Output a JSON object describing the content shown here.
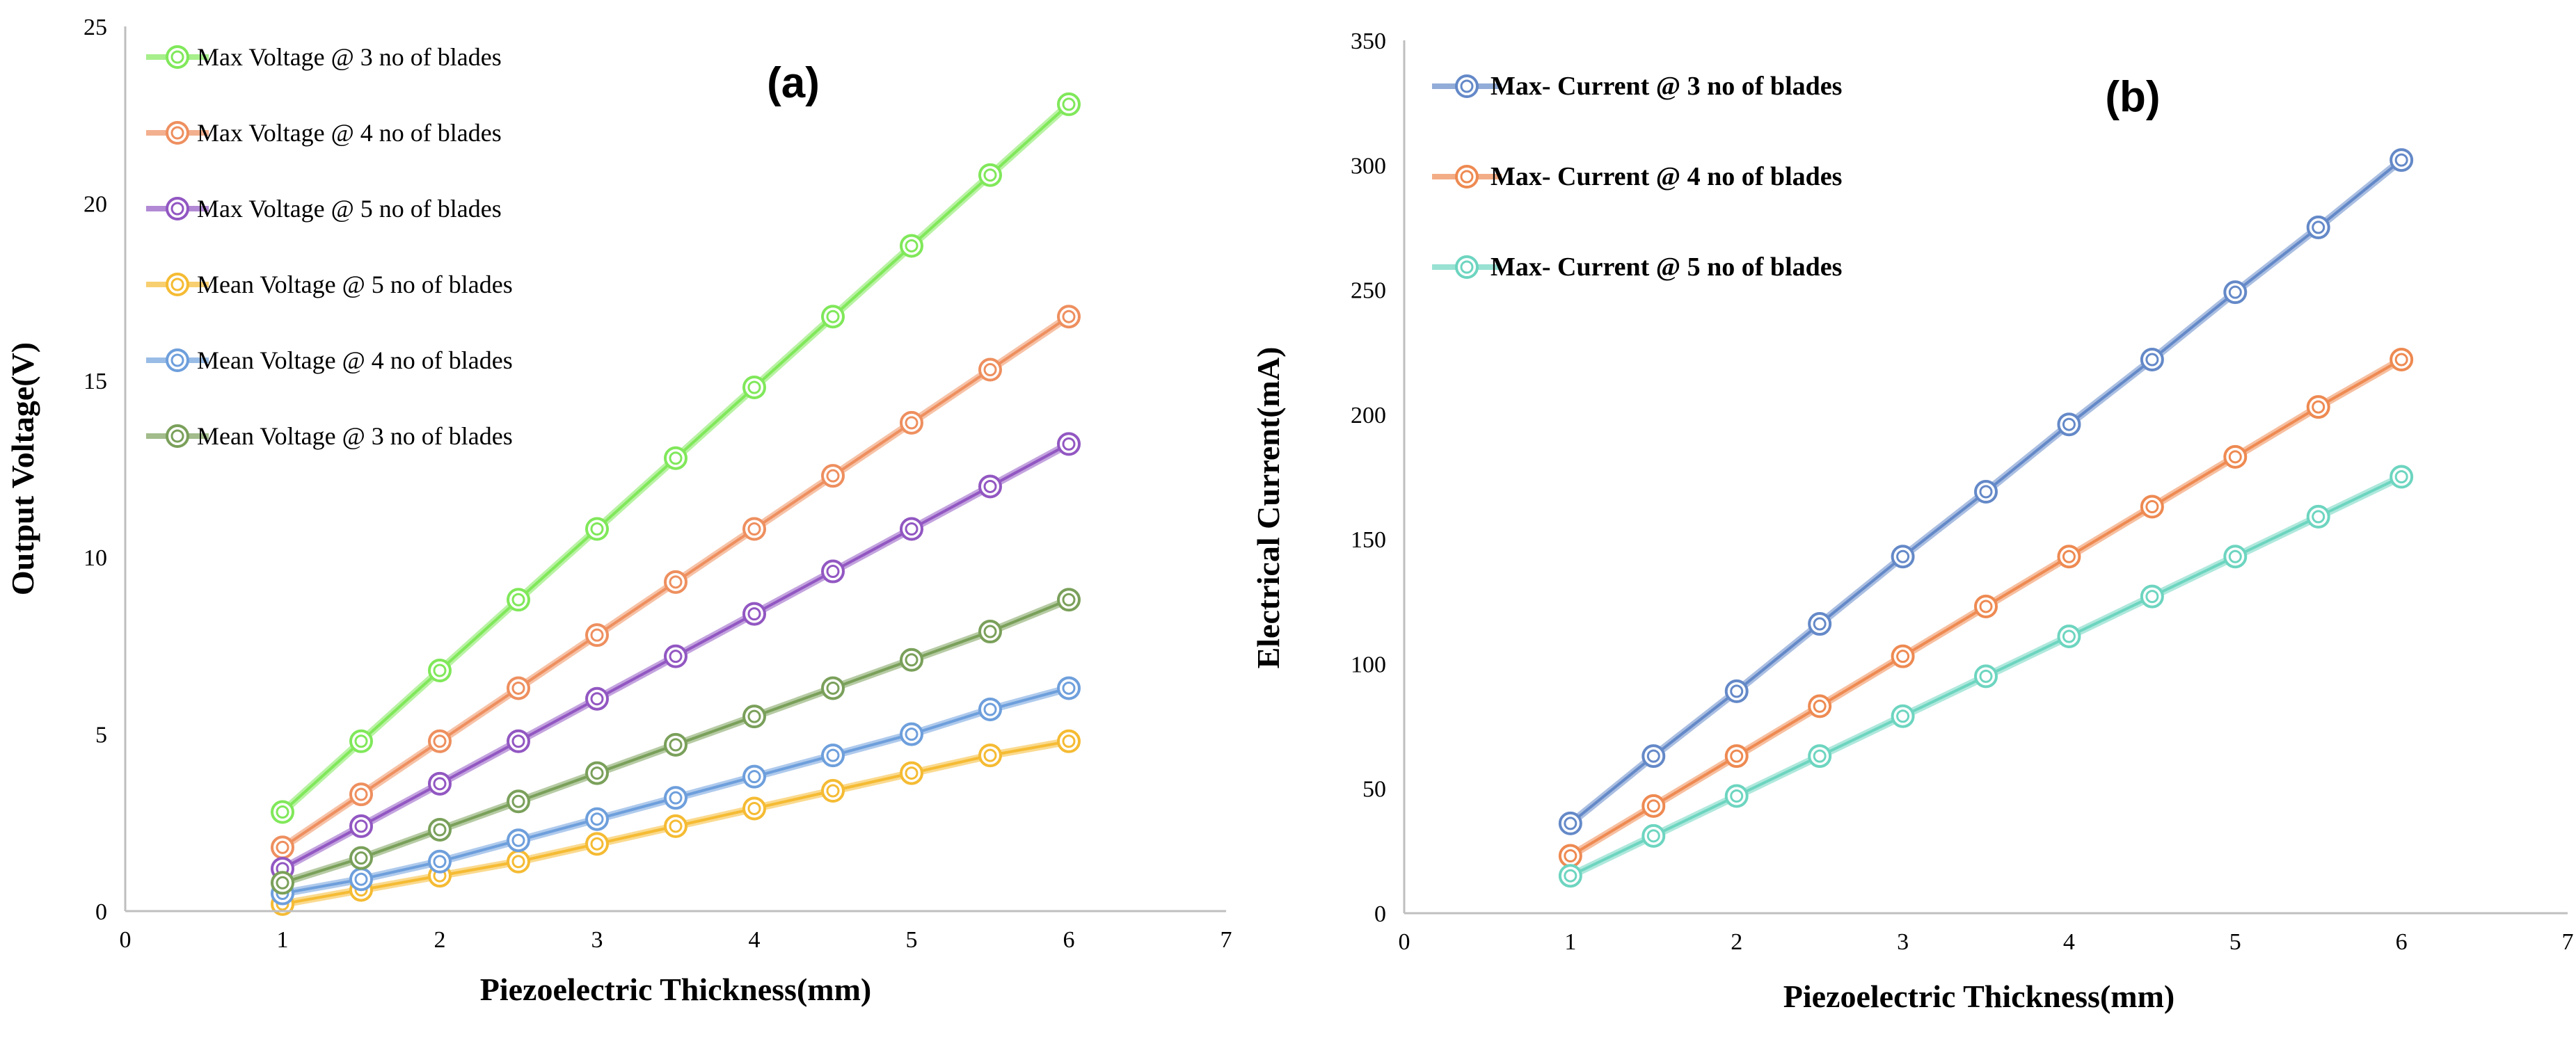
{
  "chart_data": [
    {
      "id": "a",
      "type": "line",
      "panel_label": "(a)",
      "xlabel": "Piezoelectric Thickness(mm)",
      "ylabel": "Output Voltage(V)",
      "xlim": [
        0,
        7
      ],
      "ylim": [
        0,
        25
      ],
      "xticks": [
        "0",
        "1",
        "2",
        "3",
        "4",
        "5",
        "6",
        "7"
      ],
      "yticks": [
        "0",
        "5",
        "10",
        "15",
        "20",
        "25"
      ],
      "x": [
        1,
        1.5,
        2,
        2.5,
        3,
        3.5,
        4,
        4.5,
        5,
        5.5,
        6
      ],
      "series": [
        {
          "name": "Max Voltage @ 3 no of blades",
          "color": "#80e85a",
          "values": [
            2.8,
            4.8,
            6.8,
            8.8,
            10.8,
            12.8,
            14.8,
            16.8,
            18.8,
            20.8,
            22.8
          ]
        },
        {
          "name": "Max Voltage @ 4 no of blades",
          "color": "#ee8f5f",
          "values": [
            1.8,
            3.3,
            4.8,
            6.3,
            7.8,
            9.3,
            10.8,
            12.3,
            13.8,
            15.3,
            16.8
          ]
        },
        {
          "name": "Max Voltage @ 5 no of blades",
          "color": "#9257c2",
          "values": [
            1.2,
            2.4,
            3.6,
            4.8,
            6.0,
            7.2,
            8.4,
            9.6,
            10.8,
            12.0,
            13.2
          ]
        },
        {
          "name": "Mean Voltage @ 5 no of blades",
          "color": "#f5bb33",
          "values": [
            0.2,
            0.6,
            1.0,
            1.4,
            1.9,
            2.4,
            2.9,
            3.4,
            3.9,
            4.4,
            4.8
          ]
        },
        {
          "name": "Mean Voltage @ 4 no of blades",
          "color": "#6e9fdc",
          "values": [
            0.5,
            0.9,
            1.4,
            2.0,
            2.6,
            3.2,
            3.8,
            4.4,
            5.0,
            5.7,
            6.3
          ]
        },
        {
          "name": "Mean Voltage @ 3 no of blades",
          "color": "#7aa05a",
          "values": [
            0.8,
            1.5,
            2.3,
            3.1,
            3.9,
            4.7,
            5.5,
            6.3,
            7.1,
            7.9,
            8.8
          ]
        }
      ]
    },
    {
      "id": "b",
      "type": "line",
      "panel_label": "(b)",
      "xlabel": "Piezoelectric Thickness(mm)",
      "ylabel": "Electrical Current(mA)",
      "xlim": [
        0,
        7
      ],
      "ylim": [
        0,
        350
      ],
      "xticks": [
        "0",
        "1",
        "2",
        "3",
        "4",
        "5",
        "6",
        "7"
      ],
      "yticks": [
        "0",
        "50",
        "100",
        "150",
        "200",
        "250",
        "300",
        "350"
      ],
      "x": [
        1,
        1.5,
        2,
        2.5,
        3,
        3.5,
        4,
        4.5,
        5,
        5.5,
        6
      ],
      "series": [
        {
          "name": "Max- Current @ 3 no of blades",
          "color": "#6489c8",
          "values": [
            36,
            63,
            89,
            116,
            143,
            169,
            196,
            222,
            249,
            275,
            302
          ]
        },
        {
          "name": "Max- Current @ 4 no of blades",
          "color": "#ee8a52",
          "values": [
            23,
            43,
            63,
            83,
            103,
            123,
            143,
            163,
            183,
            203,
            222
          ]
        },
        {
          "name": "Max- Current @ 5 no of blades",
          "color": "#6dd5c0",
          "values": [
            15,
            31,
            47,
            63,
            79,
            95,
            111,
            127,
            143,
            159,
            175
          ]
        }
      ]
    }
  ]
}
